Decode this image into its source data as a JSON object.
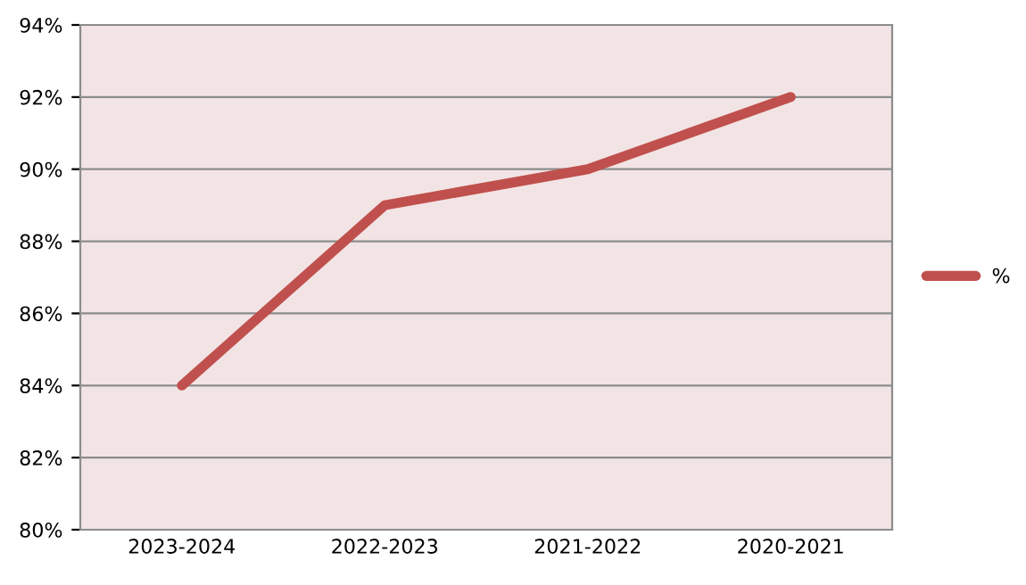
{
  "chart_data": {
    "type": "line",
    "categories": [
      "2023-2024",
      "2022-2023",
      "2021-2022",
      "2020-2021"
    ],
    "series": [
      {
        "name": "%",
        "color": "#c0504d",
        "values": [
          84,
          89,
          90,
          92
        ]
      }
    ],
    "ylim": [
      80,
      94
    ],
    "yticks": [
      {
        "value": 80,
        "label": "80%"
      },
      {
        "value": 82,
        "label": "82%"
      },
      {
        "value": 84,
        "label": "84%"
      },
      {
        "value": 86,
        "label": "86%"
      },
      {
        "value": 88,
        "label": "88%"
      },
      {
        "value": 90,
        "label": "90%"
      },
      {
        "value": 92,
        "label": "92%"
      },
      {
        "value": 94,
        "label": "94%"
      }
    ],
    "grid": "y",
    "legend": "right",
    "marker": "none",
    "line_style": "solid"
  }
}
